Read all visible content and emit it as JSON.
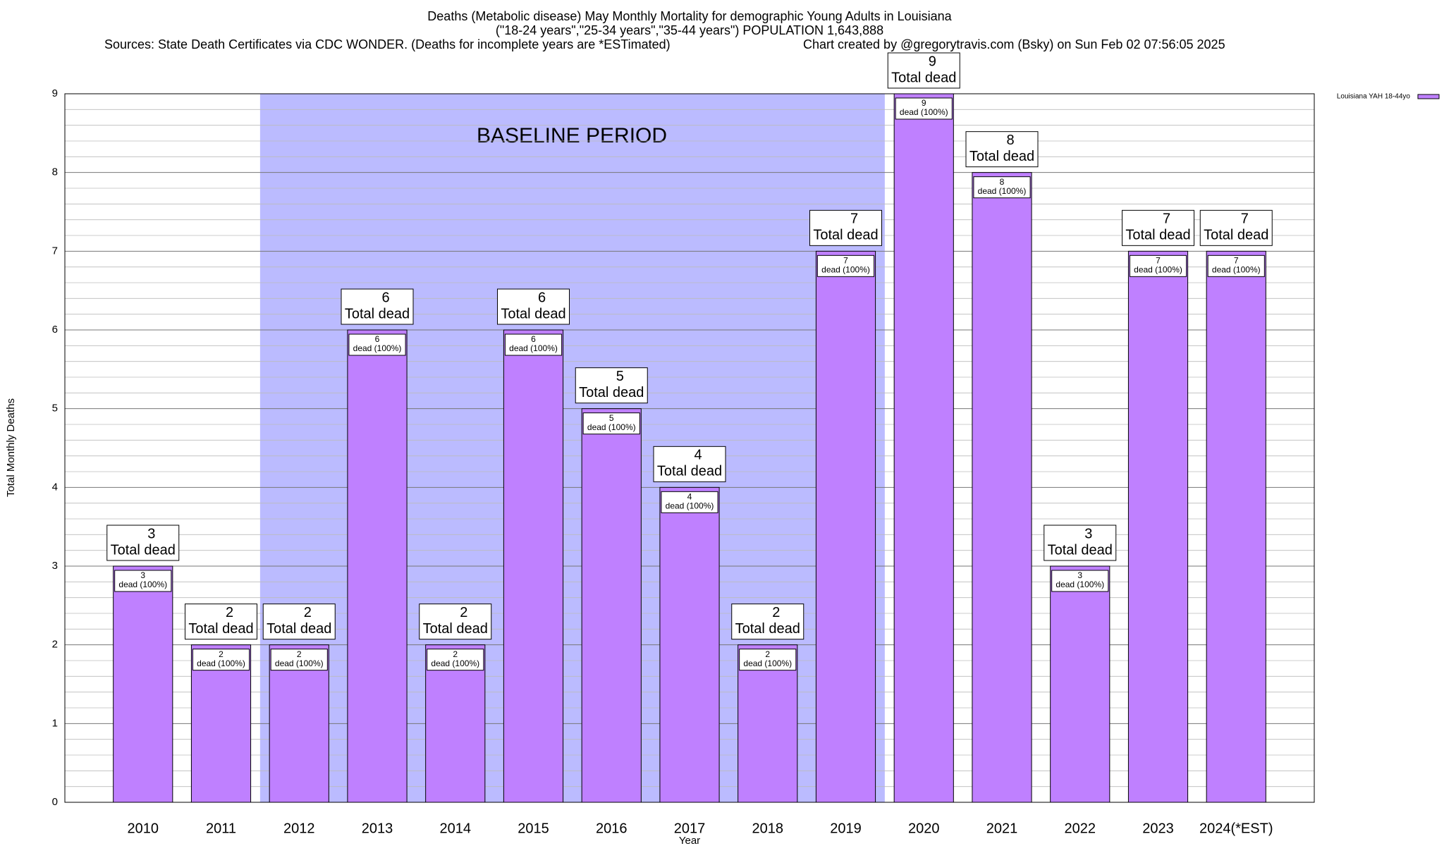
{
  "chart_data": {
    "type": "bar",
    "title": "Deaths (Metabolic disease) May Monthly Mortality for demographic Young Adults in Louisiana",
    "subtitle": "(\"18-24 years\",\"25-34 years\",\"35-44 years\") POPULATION 1,643,888",
    "source": "Sources: State Death Certificates via CDC WONDER. (Deaths for incomplete years are *ESTimated)",
    "credit": "Chart created by @gregorytravis.com (Bsky) on Sun Feb 02 07:56:05 2025",
    "xlabel": "Year",
    "ylabel": "Total Monthly Deaths",
    "categories": [
      "2010",
      "2011",
      "2012",
      "2013",
      "2014",
      "2015",
      "2016",
      "2017",
      "2018",
      "2019",
      "2020",
      "2021",
      "2022",
      "2023",
      "2024(*EST)"
    ],
    "series": [
      {
        "name": "Louisiana YAH 18-44yo",
        "color": "#bf80ff",
        "values": [
          3,
          2,
          2,
          6,
          2,
          6,
          5,
          4,
          2,
          7,
          9,
          8,
          3,
          7,
          7
        ]
      }
    ],
    "total_label": "Total dead",
    "share_label": "dead (100%)",
    "baseline": {
      "label": "BASELINE PERIOD",
      "start": "2012",
      "end": "2019",
      "color": "#bbbbff"
    },
    "ylim": [
      0,
      9
    ],
    "yticks": [
      0,
      1,
      2,
      3,
      4,
      5,
      6,
      7,
      8,
      9
    ],
    "grid": true,
    "legend": "upper right"
  }
}
